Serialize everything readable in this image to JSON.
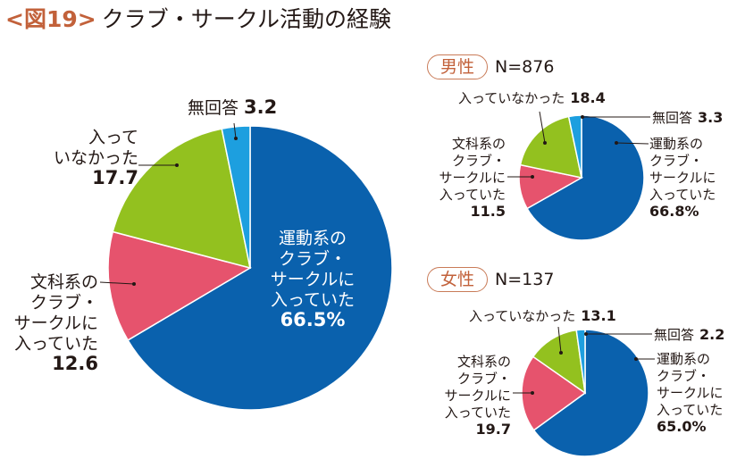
{
  "header": {
    "figure_label": "<図19>",
    "title": "クラブ・サークル活動の経験"
  },
  "colors": {
    "sports": "#0a61ad",
    "culture": "#e6536d",
    "none": "#93c11f",
    "no_answer": "#1d9fdf",
    "accent": "#c2613a"
  },
  "chart_data": [
    {
      "type": "pie",
      "title": "",
      "slices": [
        {
          "key": "sports",
          "value": 66.5,
          "label_lines": [
            "運動系の",
            "クラブ・",
            "サークルに",
            "入っていた"
          ],
          "value_label": "66.5%"
        },
        {
          "key": "culture",
          "value": 12.6,
          "label_lines": [
            "文科系の",
            "クラブ・",
            "サークルに",
            "入っていた"
          ],
          "value_label": "12.6"
        },
        {
          "key": "none",
          "value": 17.7,
          "label_lines": [
            "入って",
            "いなかった"
          ],
          "value_label": "17.7"
        },
        {
          "key": "no_answer",
          "value": 3.2,
          "label_lines": [
            "無回答"
          ],
          "value_label": "3.2"
        }
      ]
    },
    {
      "type": "pie",
      "title": "男性",
      "n_label": "N=876",
      "slices": [
        {
          "key": "sports",
          "value": 66.8,
          "label_lines": [
            "運動系の",
            "クラブ・",
            "サークルに",
            "入っていた"
          ],
          "value_label": "66.8%"
        },
        {
          "key": "culture",
          "value": 11.5,
          "label_lines": [
            "文科系の",
            "クラブ・",
            "サークルに",
            "入っていた"
          ],
          "value_label": "11.5"
        },
        {
          "key": "none",
          "value": 18.4,
          "label_lines": [
            "入っていなかった"
          ],
          "value_label": "18.4"
        },
        {
          "key": "no_answer",
          "value": 3.3,
          "label_lines": [
            "無回答"
          ],
          "value_label": "3.3"
        }
      ]
    },
    {
      "type": "pie",
      "title": "女性",
      "n_label": "N=137",
      "slices": [
        {
          "key": "sports",
          "value": 65.0,
          "label_lines": [
            "運動系の",
            "クラブ・",
            "サークルに",
            "入っていた"
          ],
          "value_label": "65.0%"
        },
        {
          "key": "culture",
          "value": 19.7,
          "label_lines": [
            "文科系の",
            "クラブ・",
            "サークルに",
            "入っていた"
          ],
          "value_label": "19.7"
        },
        {
          "key": "none",
          "value": 13.1,
          "label_lines": [
            "入っていなかった"
          ],
          "value_label": "13.1"
        },
        {
          "key": "no_answer",
          "value": 2.2,
          "label_lines": [
            "無回答"
          ],
          "value_label": "2.2"
        }
      ]
    }
  ]
}
